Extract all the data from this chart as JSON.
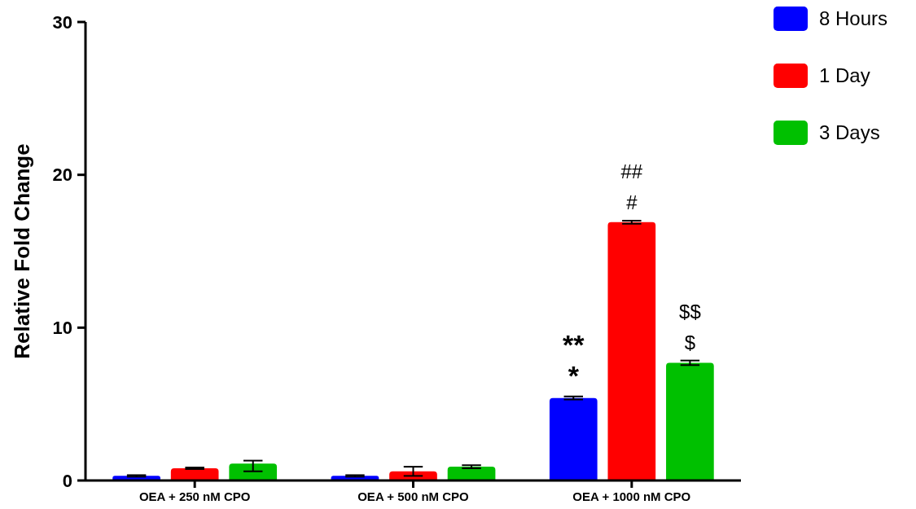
{
  "chart_data": {
    "type": "bar",
    "ylabel": "Relative Fold Change",
    "categories": [
      "OEA + 250 nM CPO",
      "OEA + 500 nM CPO",
      "OEA + 1000 nM CPO"
    ],
    "series": [
      {
        "name": "8 Hours",
        "color": "#0000ff",
        "values": [
          0.3,
          0.3,
          5.4
        ],
        "errors": [
          0.05,
          0.05,
          0.1
        ]
      },
      {
        "name": "1 Day",
        "color": "#ff0000",
        "values": [
          0.8,
          0.6,
          16.9
        ],
        "errors": [
          0.05,
          0.3,
          0.1
        ]
      },
      {
        "name": "3 Days",
        "color": "#00c000",
        "values": [
          1.1,
          0.9,
          7.7
        ],
        "errors": [
          [
            0.6,
            1.3
          ],
          0.1,
          0.15
        ]
      }
    ],
    "ylim": [
      0,
      30
    ],
    "yticks": [
      0,
      10,
      20,
      30
    ],
    "grid": false,
    "legend": "top right",
    "annotations": [
      "**",
      "*",
      "##",
      "#",
      "$$",
      "$"
    ]
  }
}
